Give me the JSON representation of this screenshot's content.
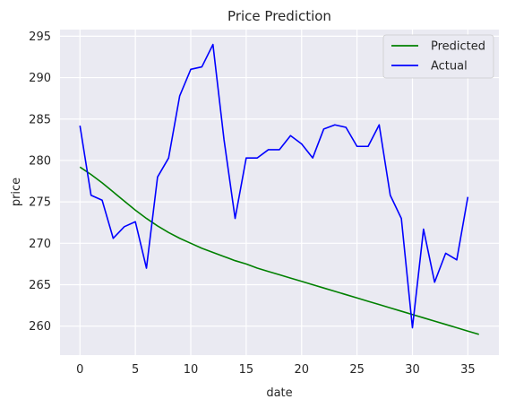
{
  "chart_data": {
    "type": "line",
    "title": "Price Prediction",
    "xlabel": "date",
    "ylabel": "price",
    "xlim": [
      -1.8,
      37.8
    ],
    "ylim": [
      256.5,
      295.8
    ],
    "xticks": [
      0,
      5,
      10,
      15,
      20,
      25,
      30,
      35
    ],
    "yticks": [
      260,
      265,
      270,
      275,
      280,
      285,
      290,
      295
    ],
    "grid": true,
    "legend_position": "top-right",
    "series": [
      {
        "name": "Predicted",
        "color": "#008000",
        "x": [
          0,
          1,
          2,
          3,
          4,
          5,
          6,
          7,
          8,
          9,
          10,
          11,
          12,
          13,
          14,
          15,
          16,
          17,
          18,
          19,
          20,
          21,
          22,
          23,
          24,
          25,
          26,
          27,
          28,
          29,
          30,
          31,
          32,
          33,
          34,
          35,
          36
        ],
        "values": [
          279.2,
          278.3,
          277.3,
          276.2,
          275.1,
          274.0,
          273.0,
          272.1,
          271.3,
          270.6,
          270.0,
          269.4,
          268.9,
          268.4,
          267.9,
          267.5,
          267.0,
          266.6,
          266.2,
          265.8,
          265.4,
          265.0,
          264.6,
          264.2,
          263.8,
          263.4,
          263.0,
          262.6,
          262.2,
          261.8,
          261.4,
          261.0,
          260.6,
          260.2,
          259.8,
          259.4,
          259.0
        ]
      },
      {
        "name": "Actual",
        "color": "#0000ff",
        "x": [
          0,
          1,
          2,
          3,
          4,
          5,
          6,
          7,
          8,
          9,
          10,
          11,
          12,
          13,
          14,
          15,
          16,
          17,
          18,
          19,
          20,
          21,
          22,
          23,
          24,
          25,
          26,
          27,
          28,
          29,
          30,
          31,
          32,
          33,
          34,
          35
        ],
        "values": [
          284.2,
          275.8,
          275.2,
          270.6,
          272.0,
          272.6,
          267.0,
          278.0,
          280.3,
          287.8,
          291.0,
          291.3,
          294.0,
          282.5,
          273.0,
          280.3,
          280.3,
          281.3,
          281.3,
          283.0,
          282.0,
          280.3,
          283.8,
          284.3,
          284.0,
          281.7,
          281.7,
          284.3,
          275.8,
          273.0,
          259.8,
          271.7,
          265.3,
          268.8,
          268.0,
          275.6
        ]
      }
    ]
  }
}
